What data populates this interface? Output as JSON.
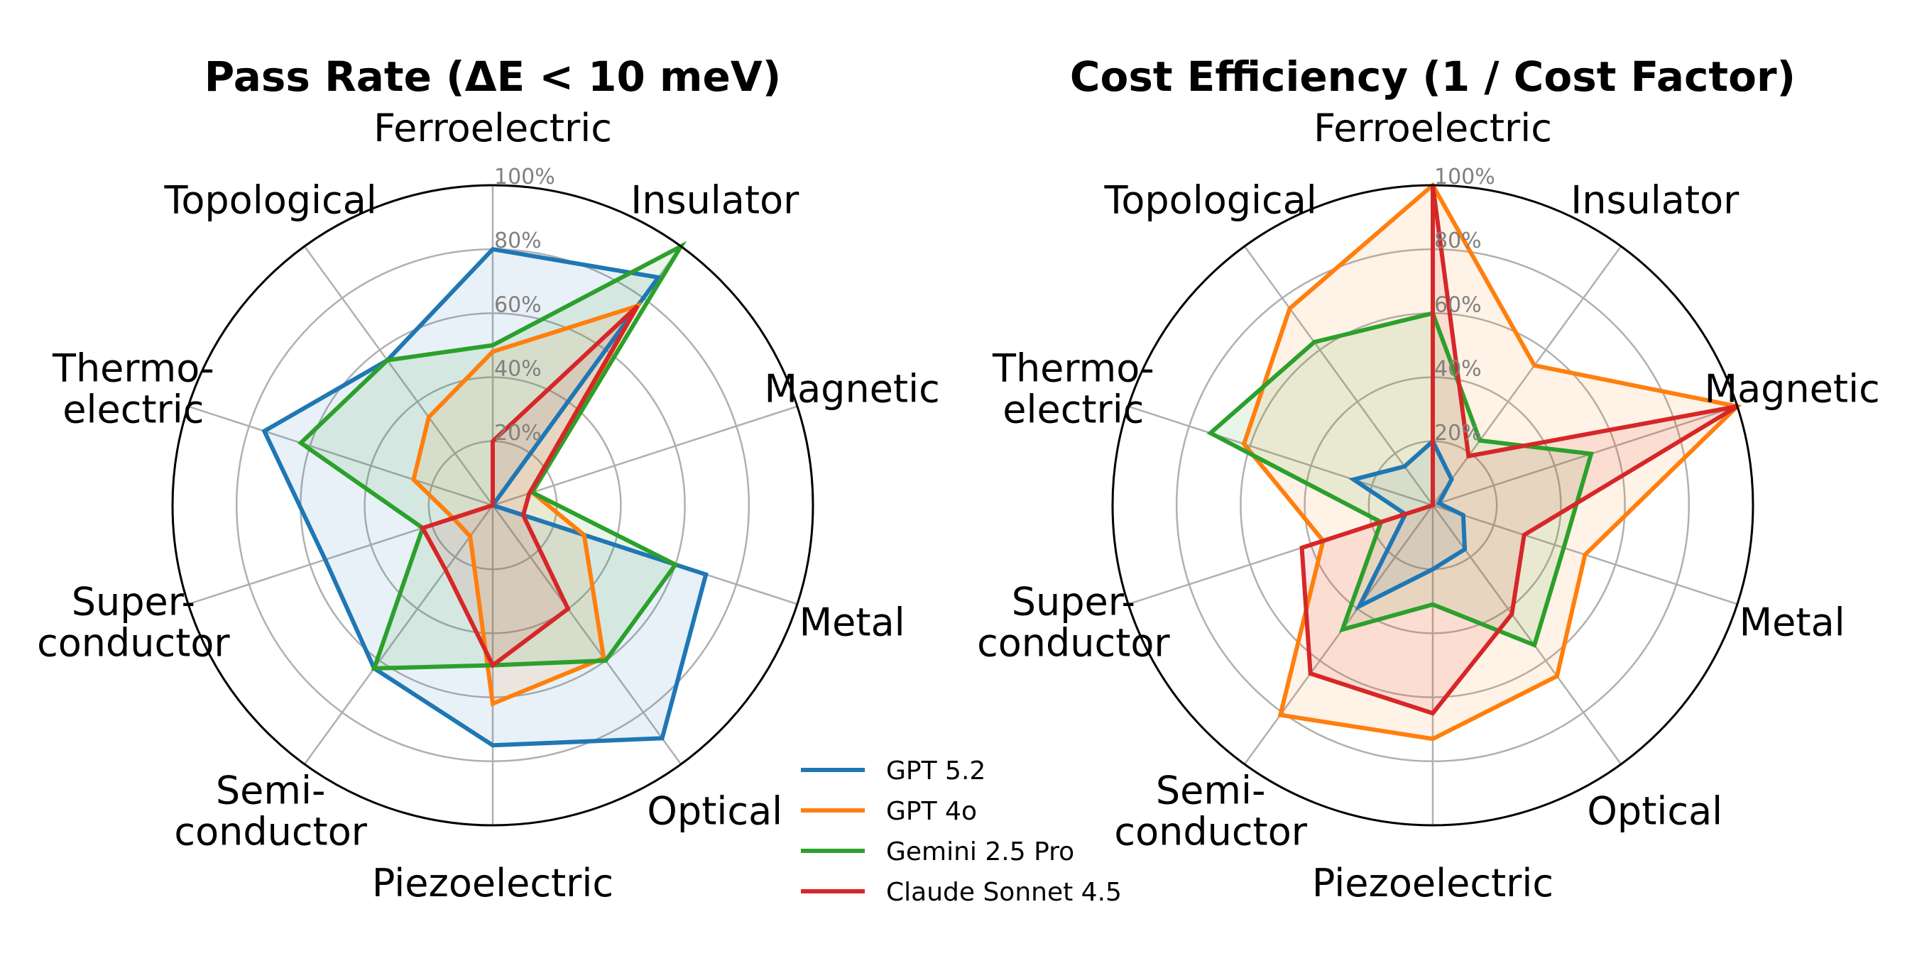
{
  "chart_data": [
    {
      "type": "radar",
      "title": "Pass Rate (ΔE < 10 meV)",
      "categories": [
        "Ferroelectric",
        "Insulator",
        "Magnetic",
        "Metal",
        "Optical",
        "Piezoelectric",
        "Semi-\nconductor",
        "Super-\nconductor",
        "Thermo-\nelectric",
        "Topological"
      ],
      "rlim": [
        0,
        100
      ],
      "rticks": [
        "20%",
        "40%",
        "60%",
        "80%",
        "100%"
      ],
      "rtick_values": [
        20,
        40,
        60,
        80,
        100
      ],
      "grid": true,
      "series": [
        {
          "name": "GPT 5.2",
          "color": "#1f77b4",
          "values": [
            80,
            88,
            0,
            70,
            90,
            75,
            63,
            55,
            75,
            56
          ]
        },
        {
          "name": "GPT 4o",
          "color": "#ff7f0e",
          "values": [
            48,
            77,
            13,
            30,
            59,
            62,
            12,
            13,
            26,
            34
          ]
        },
        {
          "name": "Gemini 2.5 Pro",
          "color": "#2ca02c",
          "values": [
            50,
            100,
            13,
            60,
            60,
            50,
            63,
            23,
            63,
            56
          ]
        },
        {
          "name": "Claude Sonnet 4.5",
          "color": "#d62728",
          "values": [
            20,
            77,
            12,
            10,
            40,
            50,
            25,
            23,
            0,
            0
          ]
        }
      ]
    },
    {
      "type": "radar",
      "title": "Cost Efficiency (1 / Cost Factor)",
      "categories": [
        "Ferroelectric",
        "Insulator",
        "Magnetic",
        "Metal",
        "Optical",
        "Piezoelectric",
        "Semi-\nconductor",
        "Super-\nconductor",
        "Thermo-\nelectric",
        "Topological"
      ],
      "rlim": [
        0,
        100
      ],
      "rticks": [
        "20%",
        "40%",
        "60%",
        "80%",
        "100%"
      ],
      "rtick_values": [
        20,
        40,
        60,
        80,
        100
      ],
      "grid": true,
      "series": [
        {
          "name": "GPT 5.2",
          "color": "#1f77b4",
          "values": [
            20,
            10,
            2,
            10,
            17,
            20,
            39,
            9,
            26,
            15
          ]
        },
        {
          "name": "GPT 4o",
          "color": "#ff7f0e",
          "values": [
            100,
            54,
            100,
            50,
            66,
            73,
            81,
            36,
            62,
            76
          ]
        },
        {
          "name": "Gemini 2.5 Pro",
          "color": "#2ca02c",
          "values": [
            60,
            25,
            52,
            43,
            54,
            31,
            48,
            17,
            73,
            63
          ]
        },
        {
          "name": "Claude Sonnet 4.5",
          "color": "#d62728",
          "values": [
            100,
            19,
            100,
            30,
            42,
            65,
            65,
            43,
            0,
            0
          ]
        }
      ]
    }
  ],
  "legend": {
    "placement": "lower-center",
    "entries": [
      "GPT 5.2",
      "GPT 4o",
      "Gemini 2.5 Pro",
      "Claude Sonnet 4.5"
    ]
  }
}
